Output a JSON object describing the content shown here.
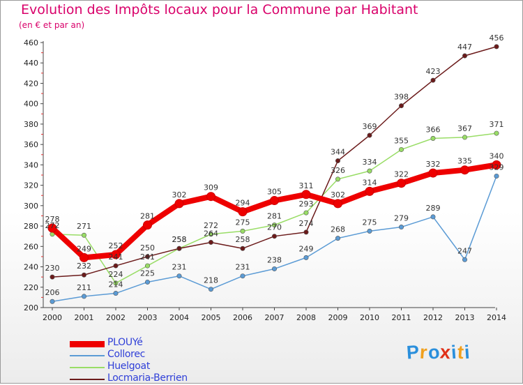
{
  "chart_data": {
    "type": "line",
    "title": "Evolution des Impôts locaux pour la Commune par Habitant",
    "subtitle": "(en € et par an)",
    "x": [
      "2000",
      "2001",
      "2002",
      "2003",
      "2004",
      "2005",
      "2006",
      "2007",
      "2008",
      "2009",
      "2010",
      "2011",
      "2012",
      "2013",
      "2014"
    ],
    "yticks": [
      "200",
      "220",
      "240",
      "260",
      "280",
      "300",
      "320",
      "340",
      "360",
      "380",
      "400",
      "420",
      "440",
      "460"
    ],
    "ylim": [
      200,
      460
    ],
    "grid": false,
    "legend_position": "bottom-left",
    "series": [
      {
        "name": "PLOUYé",
        "color": "#ee0000",
        "values": [
          278,
          249,
          252,
          281,
          302,
          309,
          294,
          305,
          311,
          302,
          314,
          322,
          332,
          335,
          340
        ]
      },
      {
        "name": "Collorec",
        "color": "#5b9bd5",
        "values": [
          206,
          211,
          214,
          225,
          231,
          218,
          231,
          238,
          249,
          268,
          275,
          279,
          289,
          247,
          329
        ]
      },
      {
        "name": "Huelgoat",
        "color": "#99dd66",
        "values": [
          272,
          271,
          224,
          241,
          258,
          272,
          275,
          281,
          293,
          326,
          334,
          355,
          366,
          367,
          371
        ]
      },
      {
        "name": "Locmaria-Berrien",
        "color": "#6b1a1a",
        "values": [
          230,
          232,
          241,
          250,
          258,
          264,
          258,
          270,
          274,
          344,
          369,
          398,
          423,
          447,
          456
        ]
      }
    ]
  },
  "logo": {
    "letters": [
      "P",
      "r",
      "o",
      "x",
      "i",
      "t",
      "i"
    ],
    "colors": [
      "#2a8fdc",
      "#f0a01e",
      "#2a8fdc",
      "#e03018",
      "#2a8fdc",
      "#f0a01e",
      "#2a8fdc"
    ]
  }
}
